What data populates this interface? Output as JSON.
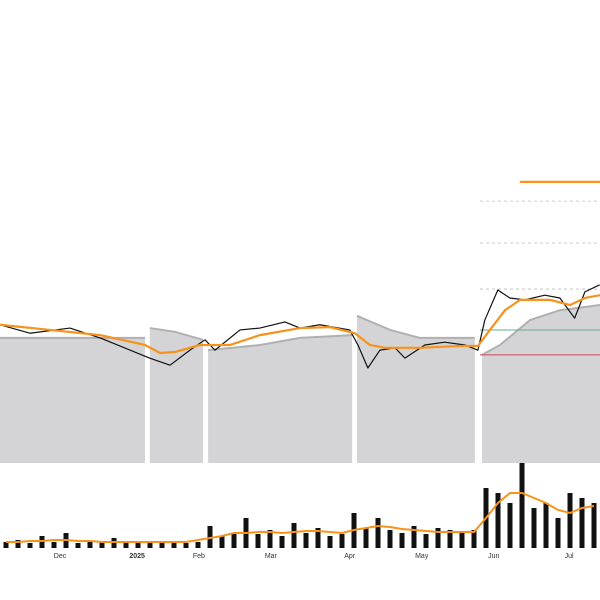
{
  "chart_data": [
    {
      "type": "line",
      "xlim": [
        0,
        175
      ],
      "ylim": [
        0,
        100
      ],
      "band": {
        "color": "#d4d4d6",
        "edge": "#b0b0b3",
        "base": 1.5,
        "x": [
          0,
          42.3,
          42.6,
          43.7,
          51,
          59.2,
          59.8,
          60.7,
          75.8,
          87.5,
          102.7,
          103.3,
          104.1,
          113.8,
          122.5,
          138.5,
          139.4,
          140.6,
          145.8,
          154.6,
          163.3,
          175
        ],
        "values": [
          28.1,
          28.1,
          null,
          30.2,
          29.4,
          27.7,
          null,
          25.5,
          26.6,
          28.1,
          28.7,
          null,
          32.8,
          29.8,
          28.1,
          28.1,
          null,
          24.5,
          26.6,
          31.9,
          34,
          35.1
        ]
      },
      "series": [
        {
          "color": "#111111",
          "width": 1.2,
          "x": [
            0,
            8.7,
            20.4,
            29.2,
            43.7,
            49.6,
            55.4,
            59.8,
            62.7,
            70,
            75.8,
            83.1,
            87.5,
            93.3,
            102,
            104.4,
            107.3,
            110.8,
            115.2,
            118.1,
            123.9,
            129.7,
            135.6,
            139.4,
            141.4,
            145.2,
            148.7,
            153.1,
            158.9,
            163.3,
            167.6,
            170.6,
            174.9
          ],
          "values": [
            30.9,
            29.1,
            30.2,
            28.1,
            23.8,
            22.3,
            25.5,
            27.7,
            25.5,
            29.8,
            30.2,
            31.5,
            30.2,
            30.9,
            29.8,
            26.6,
            21.7,
            25.5,
            26,
            23.8,
            26.6,
            27.2,
            26.6,
            25.5,
            31.9,
            38.3,
            36.6,
            36.2,
            37.2,
            36.6,
            32.3,
            37.9,
            39.4
          ]
        },
        {
          "color": "#f7931a",
          "width": 2.2,
          "x": [
            0,
            14.6,
            29.2,
            42.3,
            46.7,
            51,
            58.3,
            67.1,
            75.8,
            87.5,
            96.3,
            103.5,
            107.9,
            112.3,
            122.5,
            134.2,
            139.4,
            142.9,
            147.3,
            151.7,
            160.4,
            166.3,
            170.6,
            175
          ],
          "values": [
            30.9,
            29.8,
            28.7,
            26.6,
            24.9,
            25.1,
            26.6,
            26.6,
            28.7,
            30.2,
            30.4,
            29.1,
            26.6,
            26,
            26,
            26.4,
            26.4,
            29.8,
            34,
            36.2,
            36.2,
            35.1,
            36.6,
            37.2
          ]
        }
      ],
      "levels": [
        {
          "value": 61.3,
          "from": 151.6,
          "color": "#f7931a",
          "style": "solid"
        },
        {
          "value": 57.2,
          "from": 140,
          "color": "#bbbbbb",
          "style": "dashed"
        },
        {
          "value": 48.3,
          "from": 140,
          "color": "#bbbbbb",
          "style": "dashed"
        },
        {
          "value": 38.5,
          "from": 140,
          "color": "#bbbbbb",
          "style": "dashed"
        },
        {
          "value": 29.8,
          "from": 140,
          "color": "#5fae8c",
          "style": "solid"
        },
        {
          "value": 24.5,
          "from": 140,
          "color": "#d0455a",
          "style": "solid"
        }
      ]
    },
    {
      "type": "bar",
      "xlim": [
        0,
        175
      ],
      "ylim": [
        0,
        100
      ],
      "color": "#111111",
      "xticks": [
        {
          "value": 17.5,
          "label": "Dec"
        },
        {
          "value": 40,
          "label": "2025"
        },
        {
          "value": 58,
          "label": "Feb"
        },
        {
          "value": 79,
          "label": "Mar"
        },
        {
          "value": 102,
          "label": "Apr"
        },
        {
          "value": 123,
          "label": "May"
        },
        {
          "value": 144,
          "label": "Jun"
        },
        {
          "value": 166,
          "label": "Jul"
        }
      ],
      "x": [
        1.75,
        5.25,
        8.75,
        12.25,
        15.75,
        19.25,
        22.75,
        26.25,
        29.75,
        33.25,
        36.75,
        40.25,
        43.75,
        47.25,
        50.75,
        54.25,
        57.75,
        61.25,
        64.75,
        68.25,
        71.75,
        75.25,
        78.75,
        82.25,
        85.75,
        89.25,
        92.75,
        96.25,
        99.75,
        103.25,
        106.75,
        110.25,
        113.75,
        117.25,
        120.75,
        124.25,
        127.75,
        131.25,
        134.75,
        138.25,
        141.75,
        145.25,
        148.75,
        152.25,
        155.75,
        159.25,
        162.75,
        166.25,
        169.75,
        173.25
      ],
      "values": [
        6,
        8,
        5,
        12,
        6,
        15,
        5,
        7,
        6,
        10,
        5,
        6,
        7,
        5,
        6,
        5,
        6,
        22,
        12,
        15,
        30,
        14,
        18,
        12,
        25,
        15,
        20,
        12,
        14,
        35,
        20,
        30,
        18,
        15,
        22,
        14,
        20,
        18,
        15,
        18,
        60,
        55,
        45,
        85,
        40,
        45,
        30,
        55,
        50,
        45
      ],
      "ma": {
        "color": "#f7931a",
        "values": [
          6,
          6,
          7,
          7,
          8,
          8,
          7,
          7,
          6,
          6,
          6,
          6,
          6,
          6,
          6,
          6,
          8,
          10,
          12,
          15,
          15,
          16,
          16,
          15,
          16,
          17,
          17,
          16,
          15,
          18,
          20,
          22,
          21,
          19,
          18,
          17,
          16,
          16,
          16,
          16,
          30,
          45,
          55,
          55,
          50,
          45,
          38,
          35,
          40,
          42
        ]
      }
    }
  ]
}
